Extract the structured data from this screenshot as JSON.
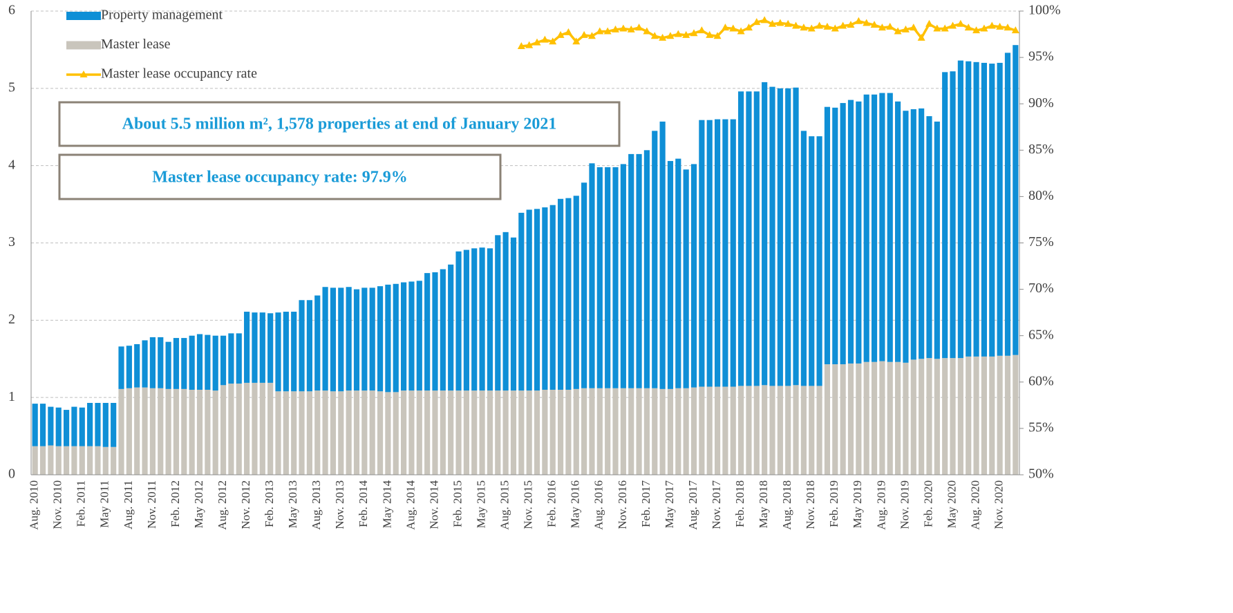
{
  "chart_data": {
    "type": "bar",
    "stacked": true,
    "categories": [
      "Aug. 2010",
      null,
      null,
      "Nov. 2010",
      null,
      null,
      "Feb. 2011",
      null,
      null,
      "May 2011",
      null,
      null,
      "Aug. 2011",
      null,
      null,
      "Nov. 2011",
      null,
      null,
      "Feb. 2012",
      null,
      null,
      "May 2012",
      null,
      null,
      "Aug. 2012",
      null,
      null,
      "Nov. 2012",
      null,
      null,
      "Feb. 2013",
      null,
      null,
      "May 2013",
      null,
      null,
      "Aug. 2013",
      null,
      null,
      "Nov. 2013",
      null,
      null,
      "Feb. 2014",
      null,
      null,
      "May 2014",
      null,
      null,
      "Aug. 2014",
      null,
      null,
      "Nov. 2014",
      null,
      null,
      "Feb. 2015",
      null,
      null,
      "May 2015",
      null,
      null,
      "Aug. 2015",
      null,
      null,
      "Nov. 2015",
      null,
      null,
      "Feb. 2016",
      null,
      null,
      "May 2016",
      null,
      null,
      "Aug. 2016",
      null,
      null,
      "Nov. 2016",
      null,
      null,
      "Feb. 2017",
      null,
      null,
      "May 2017",
      null,
      null,
      "Aug. 2017",
      null,
      null,
      "Nov. 2017",
      null,
      null,
      "Feb. 2018",
      null,
      null,
      "May 2018",
      null,
      null,
      "Aug. 2018",
      null,
      null,
      "Nov. 2018",
      null,
      null,
      "Feb. 2019",
      null,
      null,
      "May 2019",
      null,
      null,
      "Aug. 2019",
      null,
      null,
      "Nov. 2019",
      null,
      null,
      "Feb. 2020",
      null,
      null,
      "May 2020",
      null,
      null,
      "Aug. 2020",
      null,
      null,
      "Nov. 2020",
      null,
      null
    ],
    "series": [
      {
        "name": "Master lease",
        "color": "#c9c5bc",
        "values": [
          0.37,
          0.37,
          0.38,
          0.37,
          0.37,
          0.37,
          0.37,
          0.37,
          0.37,
          0.36,
          0.36,
          1.11,
          1.12,
          1.13,
          1.13,
          1.12,
          1.12,
          1.11,
          1.11,
          1.11,
          1.1,
          1.1,
          1.1,
          1.09,
          1.16,
          1.18,
          1.18,
          1.19,
          1.19,
          1.19,
          1.19,
          1.08,
          1.08,
          1.08,
          1.08,
          1.08,
          1.09,
          1.09,
          1.08,
          1.08,
          1.09,
          1.09,
          1.09,
          1.09,
          1.08,
          1.07,
          1.07,
          1.09,
          1.09,
          1.09,
          1.09,
          1.09,
          1.09,
          1.09,
          1.09,
          1.09,
          1.09,
          1.09,
          1.09,
          1.09,
          1.09,
          1.09,
          1.09,
          1.09,
          1.09,
          1.1,
          1.1,
          1.1,
          1.1,
          1.11,
          1.12,
          1.12,
          1.12,
          1.12,
          1.12,
          1.12,
          1.12,
          1.12,
          1.12,
          1.12,
          1.11,
          1.11,
          1.12,
          1.12,
          1.13,
          1.14,
          1.14,
          1.14,
          1.14,
          1.14,
          1.15,
          1.15,
          1.15,
          1.16,
          1.15,
          1.15,
          1.15,
          1.16,
          1.15,
          1.15,
          1.15,
          1.43,
          1.43,
          1.43,
          1.44,
          1.44,
          1.46,
          1.46,
          1.47,
          1.46,
          1.46,
          1.45,
          1.49,
          1.5,
          1.51,
          1.5,
          1.51,
          1.51,
          1.51,
          1.53,
          1.53,
          1.53,
          1.53,
          1.54,
          1.54,
          1.55
        ]
      },
      {
        "name": "Property management",
        "color": "#0f8fd6",
        "values": [
          0.55,
          0.55,
          0.5,
          0.5,
          0.47,
          0.51,
          0.5,
          0.56,
          0.56,
          0.57,
          0.57,
          0.55,
          0.55,
          0.56,
          0.61,
          0.66,
          0.66,
          0.61,
          0.66,
          0.66,
          0.7,
          0.72,
          0.71,
          0.71,
          0.64,
          0.65,
          0.65,
          0.92,
          0.91,
          0.91,
          0.9,
          1.02,
          1.03,
          1.03,
          1.18,
          1.18,
          1.23,
          1.34,
          1.34,
          1.34,
          1.34,
          1.31,
          1.33,
          1.33,
          1.36,
          1.39,
          1.4,
          1.4,
          1.41,
          1.42,
          1.52,
          1.53,
          1.57,
          1.63,
          1.8,
          1.82,
          1.84,
          1.85,
          1.84,
          2.01,
          2.05,
          1.98,
          2.3,
          2.34,
          2.35,
          2.36,
          2.39,
          2.47,
          2.48,
          2.5,
          2.66,
          2.91,
          2.86,
          2.86,
          2.86,
          2.9,
          3.03,
          3.03,
          3.08,
          3.33,
          3.46,
          2.95,
          2.97,
          2.83,
          2.89,
          3.45,
          3.45,
          3.46,
          3.46,
          3.46,
          3.81,
          3.81,
          3.81,
          3.92,
          3.87,
          3.85,
          3.85,
          3.85,
          3.3,
          3.23,
          3.23,
          3.33,
          3.32,
          3.38,
          3.41,
          3.39,
          3.46,
          3.46,
          3.47,
          3.48,
          3.37,
          3.26,
          3.24,
          3.24,
          3.13,
          3.07,
          3.7,
          3.71,
          3.85,
          3.82,
          3.81,
          3.8,
          3.79,
          3.79,
          3.92,
          4.01
        ]
      },
      {
        "name": "Master lease occupancy rate",
        "type": "line",
        "axis": "y2",
        "color": "#ffc000",
        "marker": "triangle",
        "values": [
          null,
          null,
          null,
          null,
          null,
          null,
          null,
          null,
          null,
          null,
          null,
          null,
          null,
          null,
          null,
          null,
          null,
          null,
          null,
          null,
          null,
          null,
          null,
          null,
          null,
          null,
          null,
          null,
          null,
          null,
          null,
          null,
          null,
          null,
          null,
          null,
          null,
          null,
          null,
          null,
          null,
          null,
          null,
          null,
          null,
          null,
          null,
          null,
          null,
          null,
          null,
          null,
          null,
          null,
          null,
          null,
          null,
          null,
          null,
          null,
          null,
          null,
          96.2,
          96.3,
          96.6,
          96.9,
          96.7,
          97.4,
          97.7,
          96.7,
          97.4,
          97.3,
          97.8,
          97.8,
          98.0,
          98.1,
          98.0,
          98.2,
          97.8,
          97.3,
          97.1,
          97.3,
          97.5,
          97.4,
          97.6,
          97.9,
          97.4,
          97.3,
          98.2,
          98.1,
          97.8,
          98.2,
          98.8,
          99.0,
          98.6,
          98.7,
          98.6,
          98.4,
          98.2,
          98.1,
          98.4,
          98.3,
          98.1,
          98.4,
          98.5,
          98.9,
          98.7,
          98.5,
          98.2,
          98.3,
          97.8,
          98.0,
          98.2,
          97.1,
          98.6,
          98.1,
          98.1,
          98.4,
          98.6,
          98.2,
          97.9,
          98.1,
          98.4,
          98.3,
          98.2,
          97.9
        ]
      }
    ],
    "ylim": [
      0,
      6
    ],
    "yticks": [
      0,
      1,
      2,
      3,
      4,
      5,
      6
    ],
    "y2lim": [
      50,
      100
    ],
    "y2ticks": [
      {
        "value": 50,
        "label": "50%"
      },
      {
        "value": 55,
        "label": "55%"
      },
      {
        "value": 60,
        "label": "60%"
      },
      {
        "value": 65,
        "label": "65%"
      },
      {
        "value": 70,
        "label": "70%"
      },
      {
        "value": 75,
        "label": "75%"
      },
      {
        "value": 80,
        "label": "80%"
      },
      {
        "value": 85,
        "label": "85%"
      },
      {
        "value": 90,
        "label": "90%"
      },
      {
        "value": 95,
        "label": "95%"
      },
      {
        "value": 100,
        "label": "100%"
      }
    ],
    "grid": true,
    "legend": "upper left",
    "annotations": [
      "About 5.5 million m², 1,578 properties at end of January 2021",
      "Master lease occupancy rate: 97.9%"
    ]
  }
}
